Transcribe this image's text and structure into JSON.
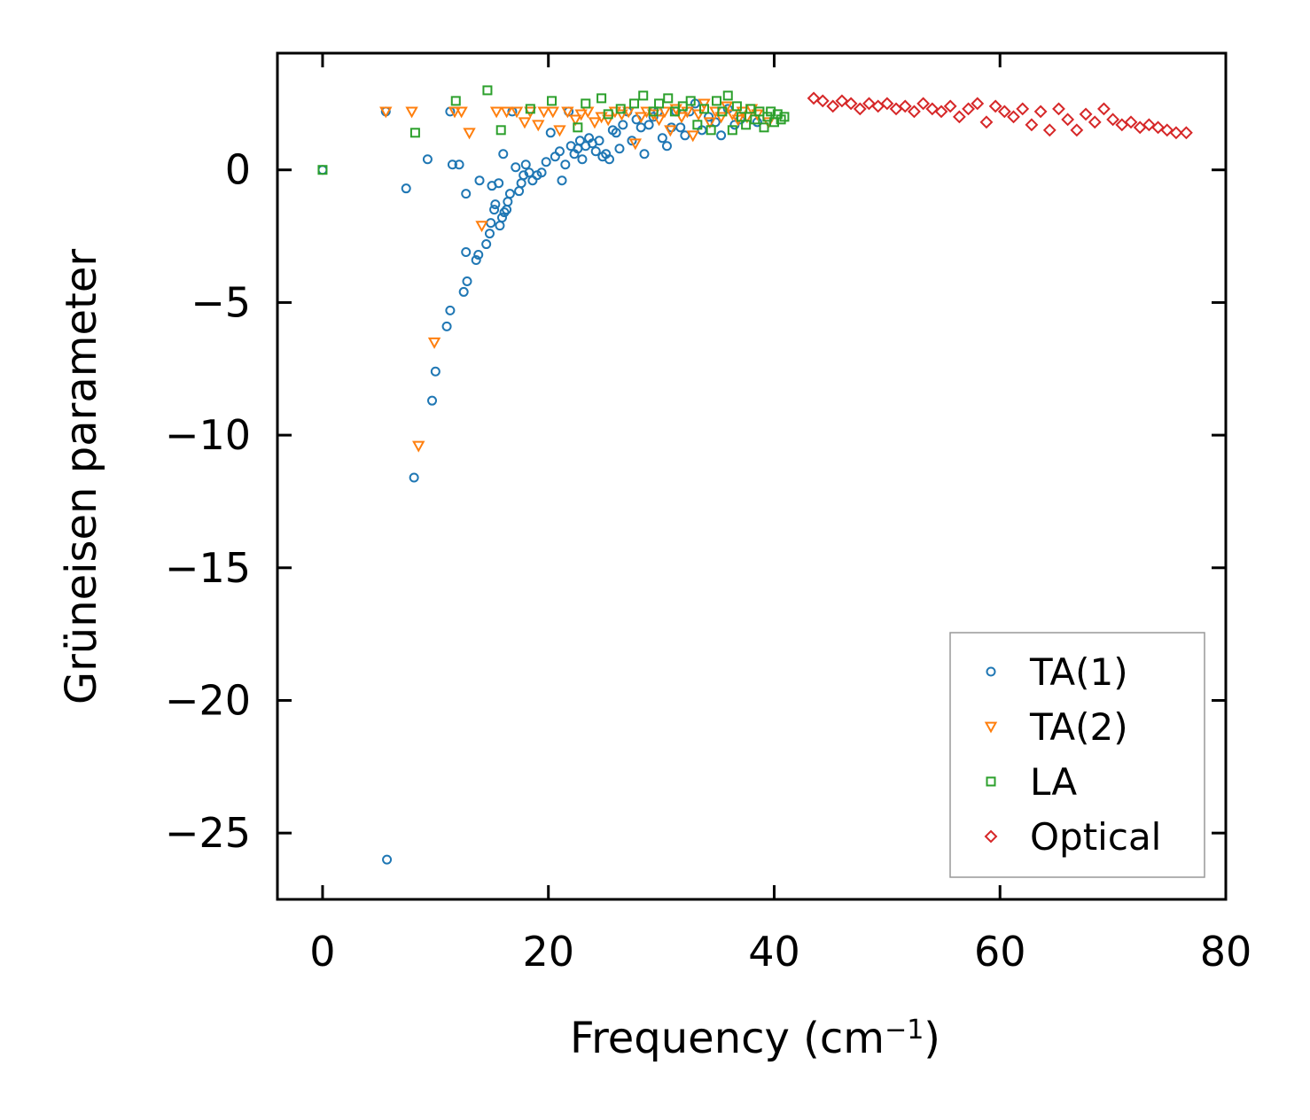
{
  "chart_data": {
    "type": "scatter",
    "title": "",
    "xlabel": "Frequency (cm",
    "xlabel_sup": "−1",
    "xlabel_end": ")",
    "ylabel": "Grüneisen parameter",
    "xlim": [
      -4,
      80
    ],
    "ylim": [
      -27.5,
      4.4
    ],
    "x_ticks": [
      0,
      20,
      40,
      60,
      80
    ],
    "x_tick_labels": [
      "0",
      "20",
      "40",
      "60",
      "80"
    ],
    "y_ticks": [
      0,
      -5,
      -10,
      -15,
      -20,
      -25
    ],
    "y_tick_labels": [
      "0",
      "−5",
      "−10",
      "−15",
      "−20",
      "−25"
    ],
    "legend_position": "lower-right",
    "series": [
      {
        "name": "TA(1)",
        "marker": "circle",
        "color": "#1f77b4",
        "points": [
          [
            0,
            0
          ],
          [
            5.7,
            -26.0
          ],
          [
            5.6,
            2.2
          ],
          [
            7.4,
            -0.7
          ],
          [
            8.1,
            -11.6
          ],
          [
            9.3,
            0.4
          ],
          [
            9.7,
            -8.7
          ],
          [
            10.0,
            -7.6
          ],
          [
            11.0,
            -5.9
          ],
          [
            11.3,
            -5.3
          ],
          [
            11.3,
            2.2
          ],
          [
            11.5,
            0.2
          ],
          [
            12.1,
            0.2
          ],
          [
            12.5,
            -4.6
          ],
          [
            12.7,
            -3.1
          ],
          [
            12.8,
            -4.2
          ],
          [
            12.7,
            -0.9
          ],
          [
            13.6,
            -3.4
          ],
          [
            13.8,
            -3.2
          ],
          [
            13.9,
            -0.4
          ],
          [
            14.5,
            -2.8
          ],
          [
            14.8,
            -2.4
          ],
          [
            14.9,
            -2.0
          ],
          [
            15.2,
            -1.5
          ],
          [
            15.3,
            -1.3
          ],
          [
            15.0,
            -0.6
          ],
          [
            15.6,
            -0.5
          ],
          [
            15.7,
            -2.1
          ],
          [
            15.9,
            -1.8
          ],
          [
            16.1,
            -1.6
          ],
          [
            16.3,
            -1.5
          ],
          [
            16.4,
            -1.2
          ],
          [
            16.6,
            -0.9
          ],
          [
            16.0,
            0.6
          ],
          [
            16.8,
            2.2
          ],
          [
            17.1,
            0.1
          ],
          [
            17.4,
            -0.8
          ],
          [
            17.6,
            -0.5
          ],
          [
            17.8,
            -0.2
          ],
          [
            18.0,
            0.2
          ],
          [
            18.3,
            -0.1
          ],
          [
            18.6,
            -0.4
          ],
          [
            19.0,
            -0.2
          ],
          [
            19.4,
            -0.1
          ],
          [
            19.8,
            0.3
          ],
          [
            20.2,
            1.4
          ],
          [
            20.6,
            0.5
          ],
          [
            21.0,
            0.7
          ],
          [
            21.2,
            -0.4
          ],
          [
            21.5,
            0.2
          ],
          [
            21.8,
            2.2
          ],
          [
            22.0,
            0.9
          ],
          [
            22.3,
            0.6
          ],
          [
            22.6,
            0.8
          ],
          [
            22.8,
            1.1
          ],
          [
            23.0,
            0.4
          ],
          [
            23.3,
            0.9
          ],
          [
            23.6,
            1.2
          ],
          [
            23.9,
            1.0
          ],
          [
            24.2,
            0.7
          ],
          [
            24.5,
            1.1
          ],
          [
            24.8,
            0.5
          ],
          [
            25.1,
            0.6
          ],
          [
            25.4,
            0.4
          ],
          [
            25.7,
            1.5
          ],
          [
            26.0,
            1.4
          ],
          [
            26.3,
            0.8
          ],
          [
            26.6,
            1.7
          ],
          [
            27.0,
            2.2
          ],
          [
            27.4,
            1.1
          ],
          [
            27.8,
            1.9
          ],
          [
            28.2,
            1.6
          ],
          [
            28.5,
            0.6
          ],
          [
            28.9,
            1.7
          ],
          [
            29.3,
            2.0
          ],
          [
            29.7,
            2.2
          ],
          [
            30.1,
            1.2
          ],
          [
            30.5,
            0.9
          ],
          [
            30.9,
            1.6
          ],
          [
            31.3,
            2.2
          ],
          [
            31.7,
            1.6
          ],
          [
            32.1,
            1.3
          ],
          [
            32.5,
            2.2
          ],
          [
            33.0,
            2.5
          ],
          [
            33.6,
            1.5
          ],
          [
            34.2,
            2.0
          ],
          [
            34.8,
            1.8
          ],
          [
            35.3,
            1.3
          ],
          [
            35.9,
            2.3
          ],
          [
            36.5,
            1.7
          ],
          [
            37.0,
            1.9
          ],
          [
            38.5,
            1.8
          ]
        ]
      },
      {
        "name": "TA(2)",
        "marker": "triangle-down",
        "color": "#ff7f0e",
        "points": [
          [
            5.6,
            2.2
          ],
          [
            7.9,
            2.2
          ],
          [
            8.5,
            -10.4
          ],
          [
            9.9,
            -6.5
          ],
          [
            11.7,
            2.2
          ],
          [
            12.3,
            2.2
          ],
          [
            13.0,
            1.4
          ],
          [
            14.1,
            -2.1
          ],
          [
            15.4,
            2.2
          ],
          [
            16.3,
            2.2
          ],
          [
            17.2,
            2.2
          ],
          [
            17.9,
            1.8
          ],
          [
            18.4,
            2.2
          ],
          [
            19.1,
            1.7
          ],
          [
            19.6,
            2.2
          ],
          [
            20.4,
            2.2
          ],
          [
            21.0,
            1.5
          ],
          [
            21.7,
            2.2
          ],
          [
            22.4,
            1.9
          ],
          [
            22.9,
            2.1
          ],
          [
            23.5,
            2.2
          ],
          [
            24.1,
            1.8
          ],
          [
            24.7,
            2.0
          ],
          [
            25.3,
            1.9
          ],
          [
            25.9,
            2.2
          ],
          [
            26.5,
            2.1
          ],
          [
            27.1,
            2.2
          ],
          [
            27.7,
            1.0
          ],
          [
            28.2,
            2.0
          ],
          [
            28.7,
            2.2
          ],
          [
            29.3,
            2.1
          ],
          [
            29.8,
            1.9
          ],
          [
            30.3,
            2.2
          ],
          [
            30.8,
            1.5
          ],
          [
            31.3,
            2.3
          ],
          [
            31.8,
            2.0
          ],
          [
            32.3,
            2.2
          ],
          [
            32.8,
            1.3
          ],
          [
            33.3,
            2.1
          ],
          [
            33.8,
            2.5
          ],
          [
            34.3,
            1.8
          ],
          [
            34.8,
            2.2
          ],
          [
            35.3,
            2.0
          ],
          [
            35.8,
            2.4
          ],
          [
            36.3,
            2.1
          ],
          [
            36.8,
            1.9
          ],
          [
            37.2,
            2.2
          ],
          [
            37.6,
            2.0
          ],
          [
            38.0,
            2.3
          ],
          [
            38.5,
            2.1
          ],
          [
            39.5,
            1.8
          ]
        ]
      },
      {
        "name": "LA",
        "marker": "square",
        "color": "#2ca02c",
        "points": [
          [
            0,
            0
          ],
          [
            8.2,
            1.4
          ],
          [
            11.8,
            2.6
          ],
          [
            14.6,
            3.0
          ],
          [
            15.8,
            1.5
          ],
          [
            18.4,
            2.3
          ],
          [
            20.3,
            2.6
          ],
          [
            22.6,
            1.6
          ],
          [
            23.3,
            2.5
          ],
          [
            24.7,
            2.7
          ],
          [
            25.3,
            2.1
          ],
          [
            26.4,
            2.3
          ],
          [
            27.6,
            2.5
          ],
          [
            28.4,
            2.8
          ],
          [
            29.3,
            2.2
          ],
          [
            29.8,
            2.5
          ],
          [
            30.6,
            2.7
          ],
          [
            31.2,
            2.2
          ],
          [
            31.9,
            2.4
          ],
          [
            32.6,
            2.6
          ],
          [
            33.2,
            1.7
          ],
          [
            33.8,
            2.3
          ],
          [
            34.4,
            1.5
          ],
          [
            34.9,
            2.6
          ],
          [
            35.4,
            2.2
          ],
          [
            35.9,
            2.8
          ],
          [
            36.3,
            1.5
          ],
          [
            36.7,
            2.4
          ],
          [
            37.1,
            2.0
          ],
          [
            37.5,
            1.7
          ],
          [
            37.9,
            2.3
          ],
          [
            38.3,
            1.9
          ],
          [
            38.7,
            2.2
          ],
          [
            39.1,
            1.6
          ],
          [
            39.4,
            2.0
          ],
          [
            39.7,
            2.2
          ],
          [
            40.0,
            1.8
          ],
          [
            40.3,
            2.1
          ],
          [
            40.6,
            1.9
          ],
          [
            40.9,
            2.0
          ]
        ]
      },
      {
        "name": "Optical",
        "marker": "diamond",
        "color": "#d62728",
        "points": [
          [
            43.5,
            2.7
          ],
          [
            44.3,
            2.6
          ],
          [
            45.2,
            2.4
          ],
          [
            46.0,
            2.6
          ],
          [
            46.8,
            2.5
          ],
          [
            47.6,
            2.3
          ],
          [
            48.4,
            2.5
          ],
          [
            49.2,
            2.4
          ],
          [
            50.0,
            2.5
          ],
          [
            50.8,
            2.3
          ],
          [
            51.6,
            2.4
          ],
          [
            52.4,
            2.2
          ],
          [
            53.2,
            2.5
          ],
          [
            54.0,
            2.3
          ],
          [
            54.8,
            2.2
          ],
          [
            55.6,
            2.4
          ],
          [
            56.4,
            2.0
          ],
          [
            57.2,
            2.3
          ],
          [
            58.0,
            2.5
          ],
          [
            58.8,
            1.8
          ],
          [
            59.6,
            2.4
          ],
          [
            60.4,
            2.2
          ],
          [
            61.2,
            2.0
          ],
          [
            62.0,
            2.3
          ],
          [
            62.8,
            1.7
          ],
          [
            63.6,
            2.2
          ],
          [
            64.4,
            1.5
          ],
          [
            65.2,
            2.3
          ],
          [
            66.0,
            1.9
          ],
          [
            66.8,
            1.5
          ],
          [
            67.6,
            2.1
          ],
          [
            68.4,
            1.8
          ],
          [
            69.2,
            2.3
          ],
          [
            70.0,
            1.9
          ],
          [
            70.8,
            1.7
          ],
          [
            71.6,
            1.8
          ],
          [
            72.4,
            1.6
          ],
          [
            73.2,
            1.7
          ],
          [
            74.0,
            1.6
          ],
          [
            74.8,
            1.5
          ],
          [
            75.6,
            1.4
          ],
          [
            76.5,
            1.4
          ]
        ]
      }
    ]
  }
}
